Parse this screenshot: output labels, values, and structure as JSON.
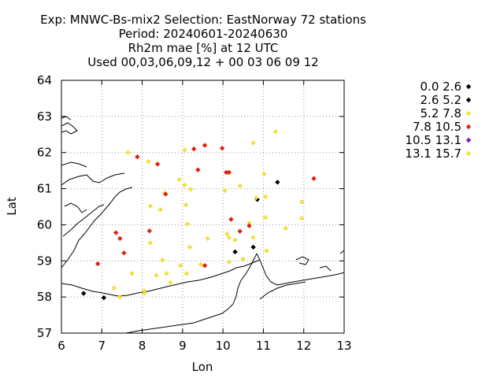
{
  "chart_data": {
    "type": "scatter",
    "title_lines": [
      "Exp: MNWC-Bs-mix2   Selection: EastNorway      72 stations",
      "Period: 20240601-20240630",
      "Rh2m mae [%] at  12 UTC",
      "Used 00,03,06,09,12 + 00 03 06 09 12"
    ],
    "xlabel": "Lon",
    "ylabel": "Lat",
    "xlim": [
      6,
      13
    ],
    "ylim": [
      57,
      64
    ],
    "xticks": [
      "6",
      "7",
      "8",
      "9",
      "10",
      "11",
      "12",
      "13"
    ],
    "yticks": [
      "57",
      "58",
      "59",
      "60",
      "61",
      "62",
      "63",
      "64"
    ],
    "grid": true,
    "grid_style": "dotted",
    "legend_position": "right",
    "legend": [
      {
        "label": "0.0 2.6",
        "color": "#000000"
      },
      {
        "label": "2.6 5.2",
        "color": "#000000"
      },
      {
        "label": "5.2 7.8",
        "color": "#f0e040"
      },
      {
        "label": "7.8 10.5",
        "color": "#e02010"
      },
      {
        "label": "10.5 13.1",
        "color": "#8010c0"
      },
      {
        "label": "13.1 15.7",
        "color": "#f0e040"
      }
    ],
    "series": [
      {
        "name": "2.6 5.2",
        "color": "#000000",
        "points": [
          [
            6.55,
            58.1
          ],
          [
            7.05,
            57.98
          ],
          [
            10.3,
            59.25
          ],
          [
            10.75,
            59.38
          ],
          [
            10.85,
            60.7
          ],
          [
            11.35,
            61.18
          ]
        ]
      },
      {
        "name": "5.2 7.8",
        "color": "#f0e040",
        "points": [
          [
            7.65,
            62.0
          ],
          [
            8.15,
            61.75
          ],
          [
            9.05,
            62.07
          ],
          [
            11.3,
            62.58
          ],
          [
            10.75,
            62.27
          ],
          [
            8.92,
            61.25
          ],
          [
            9.05,
            61.1
          ],
          [
            9.2,
            60.98
          ],
          [
            10.05,
            60.95
          ],
          [
            10.42,
            61.08
          ],
          [
            11.02,
            61.4
          ],
          [
            10.82,
            60.75
          ],
          [
            11.05,
            60.78
          ],
          [
            11.95,
            60.63
          ],
          [
            8.2,
            60.52
          ],
          [
            8.45,
            60.42
          ],
          [
            8.55,
            60.88
          ],
          [
            9.08,
            60.55
          ],
          [
            9.12,
            60.02
          ],
          [
            11.05,
            60.2
          ],
          [
            11.95,
            60.18
          ],
          [
            11.55,
            59.9
          ],
          [
            10.65,
            60.05
          ],
          [
            8.2,
            59.5
          ],
          [
            10.1,
            59.75
          ],
          [
            10.15,
            59.65
          ],
          [
            10.3,
            59.58
          ],
          [
            10.75,
            59.65
          ],
          [
            9.62,
            59.62
          ],
          [
            9.18,
            59.38
          ],
          [
            11.08,
            59.28
          ],
          [
            8.5,
            59.02
          ],
          [
            8.95,
            58.87
          ],
          [
            9.45,
            58.9
          ],
          [
            10.15,
            58.97
          ],
          [
            10.5,
            59.05
          ],
          [
            7.3,
            58.25
          ],
          [
            7.75,
            58.65
          ],
          [
            8.05,
            58.17
          ],
          [
            8.05,
            58.1
          ],
          [
            7.45,
            58.0
          ],
          [
            8.35,
            58.6
          ],
          [
            8.7,
            58.4
          ],
          [
            8.6,
            58.65
          ],
          [
            9.1,
            58.65
          ]
        ]
      },
      {
        "name": "7.8 10.5",
        "color": "#e02010",
        "points": [
          [
            7.88,
            61.88
          ],
          [
            8.38,
            61.68
          ],
          [
            9.28,
            62.1
          ],
          [
            9.55,
            62.2
          ],
          [
            9.98,
            62.12
          ],
          [
            9.38,
            61.52
          ],
          [
            10.08,
            61.45
          ],
          [
            10.15,
            61.45
          ],
          [
            12.25,
            61.28
          ],
          [
            8.58,
            60.85
          ],
          [
            8.18,
            59.83
          ],
          [
            7.35,
            59.78
          ],
          [
            7.45,
            59.62
          ],
          [
            7.55,
            59.22
          ],
          [
            6.9,
            58.92
          ],
          [
            9.55,
            58.87
          ],
          [
            10.2,
            60.15
          ],
          [
            10.42,
            59.82
          ],
          [
            10.65,
            59.97
          ]
        ]
      }
    ]
  }
}
